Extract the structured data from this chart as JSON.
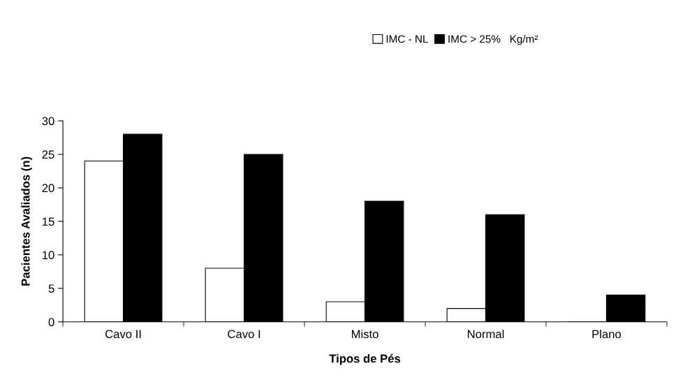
{
  "chart_data": {
    "type": "bar",
    "xlabel": "Tipos de Pés",
    "ylabel": "Pacientes Avaliados (n)",
    "categories": [
      "Cavo II",
      "Cavo I",
      "Misto",
      "Normal",
      "Plano"
    ],
    "series": [
      {
        "name": "IMC - NL",
        "color": "#ffffff",
        "values": [
          24,
          8,
          3,
          2,
          0
        ]
      },
      {
        "name": "IMC > 25%   Kg/m²",
        "color": "#000000",
        "values": [
          28,
          25,
          18,
          16,
          4
        ]
      }
    ],
    "ylim": [
      0,
      30
    ],
    "yticks": [
      0,
      5,
      10,
      15,
      20,
      25,
      30
    ],
    "grid": false,
    "legend": "top right"
  }
}
